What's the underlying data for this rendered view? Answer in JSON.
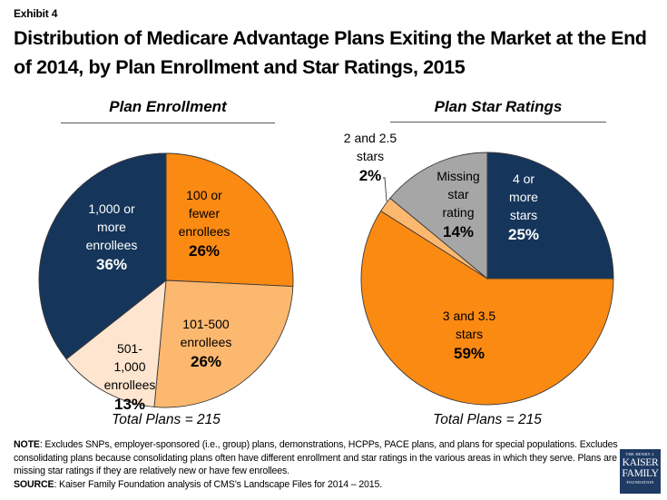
{
  "exhibit_label": "Exhibit 4",
  "title": "Distribution of Medicare Advantage Plans Exiting the Market at the End of 2014, by Plan Enrollment and Star Ratings, 2015",
  "colors": {
    "navy": "#15355a",
    "orange": "#fb8a13",
    "light_orange": "#fdb870",
    "peach": "#fde5cf",
    "gray": "#a6a6a6"
  },
  "chart_data": [
    {
      "type": "pie",
      "title": "Plan Enrollment",
      "start_angle": "12 o'clock",
      "direction": "clockwise",
      "slices": [
        {
          "label": "100 or fewer enrollees",
          "label_lines": [
            "100 or",
            "fewer",
            "enrollees"
          ],
          "value": 26,
          "pct_label": "26%",
          "color": "#fb8a13",
          "text_color": "#000000"
        },
        {
          "label": "101-500 enrollees",
          "label_lines": [
            "101-500",
            "enrollees"
          ],
          "value": 26,
          "pct_label": "26%",
          "color": "#fdb870",
          "text_color": "#000000"
        },
        {
          "label": "501-1,000 enrollees",
          "label_lines": [
            "501-",
            "1,000",
            "enrollees"
          ],
          "value": 13,
          "pct_label": "13%",
          "color": "#fde5cf",
          "text_color": "#000000"
        },
        {
          "label": "1,000 or more enrollees",
          "label_lines": [
            "1,000 or",
            "more",
            "enrollees"
          ],
          "value": 36,
          "pct_label": "36%",
          "color": "#15355a",
          "text_color": "#ffffff"
        }
      ],
      "footer": "Total Plans = 215"
    },
    {
      "type": "pie",
      "title": "Plan Star Ratings",
      "start_angle": "12 o'clock",
      "direction": "clockwise",
      "slices": [
        {
          "label": "4 or more stars",
          "label_lines": [
            "4 or",
            "more",
            "stars"
          ],
          "value": 25,
          "pct_label": "25%",
          "color": "#15355a",
          "text_color": "#ffffff"
        },
        {
          "label": "3 and 3.5 stars",
          "label_lines": [
            "3 and 3.5",
            "stars"
          ],
          "value": 59,
          "pct_label": "59%",
          "color": "#fb8a13",
          "text_color": "#000000"
        },
        {
          "label": "2 and 2.5 stars",
          "label_lines": [
            "2 and 2.5",
            "stars"
          ],
          "value": 2,
          "pct_label": "2%",
          "color": "#fdb870",
          "text_color": "#000000",
          "external_label": true
        },
        {
          "label": "Missing star rating",
          "label_lines": [
            "Missing",
            "star",
            "rating"
          ],
          "value": 14,
          "pct_label": "14%",
          "color": "#a6a6a6",
          "text_color": "#000000"
        }
      ],
      "footer": "Total Plans = 215"
    }
  ],
  "notes": {
    "note_label": "NOTE",
    "note_text": ": Excludes SNPs, employer-sponsored (i.e., group) plans, demonstrations, HCPPs, PACE plans, and plans for special populations. Excludes consolidating plans because consolidating plans often have different enrollment and star ratings in the various areas in which they serve. Plans are missing star ratings if they are relatively new or have few enrollees.",
    "source_label": "SOURCE",
    "source_text": ": Kaiser Family Foundation analysis of CMS’s Landscape Files for 2014 – 2015."
  },
  "logo": {
    "line1": "THE HENRY J.",
    "line2": "KAISER",
    "line3": "FAMILY",
    "line4": "FOUNDATION"
  }
}
